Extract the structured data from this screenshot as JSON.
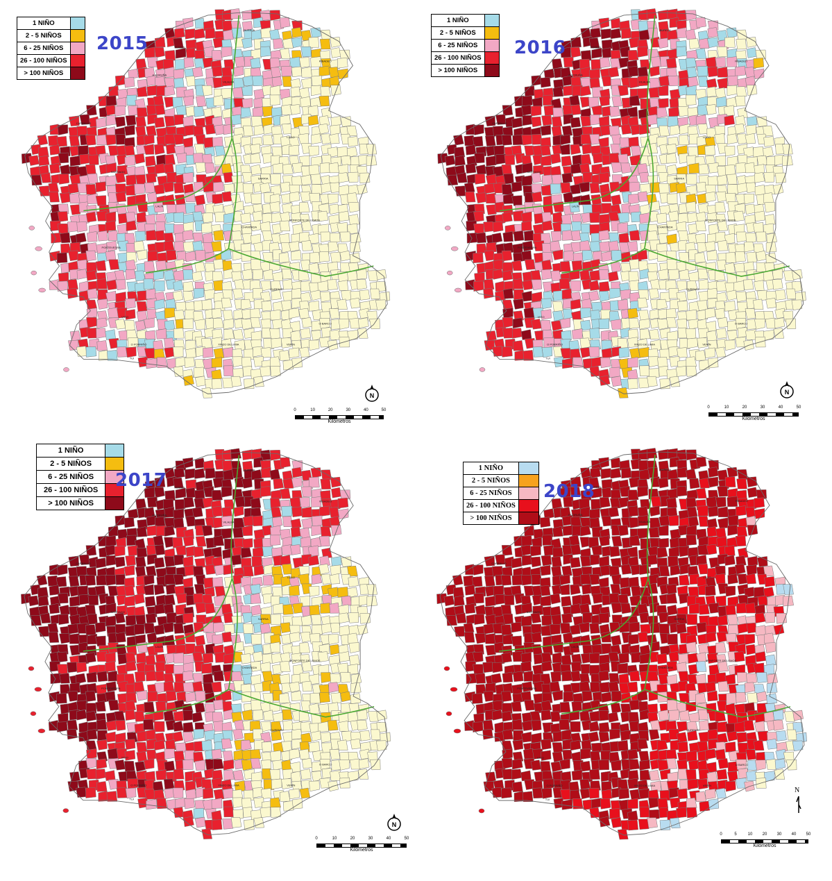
{
  "legend": {
    "labels": [
      "1 NIÑO",
      "2 - 5 NIÑOS",
      "6 - 25 NIÑOS",
      "26 - 100 NIÑOS",
      "> 100 NIÑOS"
    ],
    "colors": [
      "#a6dbe8",
      "#f5bd10",
      "#f2a8c4",
      "#e8212e",
      "#8e0a1a"
    ]
  },
  "legend_2018": {
    "labels": [
      "1 NIÑO",
      "2 - 5 NIÑOS",
      "6 - 25 NIÑOS",
      "26 - 100 NIÑOS",
      "> 100 NIÑOS"
    ],
    "colors": [
      "#b8dcf0",
      "#f7a21d",
      "#f6b8c2",
      "#e8101c",
      "#b00d18"
    ]
  },
  "base_color": "#fbf8cf",
  "boundary_color": "#4aa832",
  "panels": [
    {
      "year": "2015",
      "scale": {
        "ticks": [
          "0",
          "10",
          "20",
          "30",
          "40",
          "50"
        ],
        "unit": "Kilómetros"
      }
    },
    {
      "year": "2016",
      "scale": {
        "ticks": [
          "0",
          "10",
          "20",
          "30",
          "40",
          "50"
        ],
        "unit": "Kilómetros"
      }
    },
    {
      "year": "2017",
      "scale": {
        "ticks": [
          "0",
          "10",
          "20",
          "30",
          "40",
          "50"
        ],
        "unit": "Kilómetros"
      }
    },
    {
      "year": "2018",
      "scale": {
        "ticks": [
          "0",
          "5",
          "10",
          "20",
          "30",
          "40",
          "50"
        ],
        "unit": "Kilómetros"
      },
      "north_label": "N"
    }
  ],
  "place_labels": [
    "BURELA",
    "VILALBA",
    "LUGO",
    "OURENSE",
    "VIGO",
    "A CORUÑA",
    "SANTIAGO",
    "PONTEVEDRA",
    "MONFORTE DE LEMOS",
    "FERROL",
    "RIBADEO",
    "SARRIA",
    "CHANTADA",
    "O BARCO",
    "VERÍN",
    "XINZO DE LIMIA",
    "O PORRIÑO",
    "TUI",
    "LALÍN",
    "CARBALLO"
  ]
}
